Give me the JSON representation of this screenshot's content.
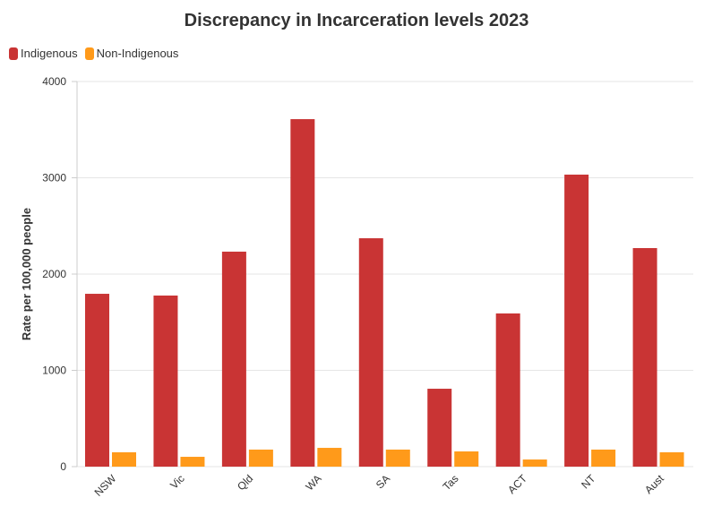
{
  "chart_data": {
    "type": "bar",
    "title": "Discrepancy in Incarceration levels 2023",
    "ylabel": "Rate per 100,000 people",
    "xlabel": "",
    "ylim": [
      0,
      4000
    ],
    "yticks": [
      "0",
      "1000",
      "2000",
      "3000",
      "4000"
    ],
    "grid": true,
    "legend_position": "top-left",
    "categories": [
      "NSW",
      "Vic",
      "Qld",
      "WA",
      "SA",
      "Tas",
      "ACT",
      "NT",
      "Aust"
    ],
    "series": [
      {
        "name": "Indigenous",
        "color": "#c93434",
        "values": [
          1795,
          1777,
          2233,
          3609,
          2372,
          809,
          1591,
          3033,
          2270
        ]
      },
      {
        "name": "Non-Indigenous",
        "color": "#ff9a1a",
        "values": [
          149,
          102,
          177,
          195,
          177,
          158,
          74,
          177,
          149
        ]
      }
    ]
  }
}
